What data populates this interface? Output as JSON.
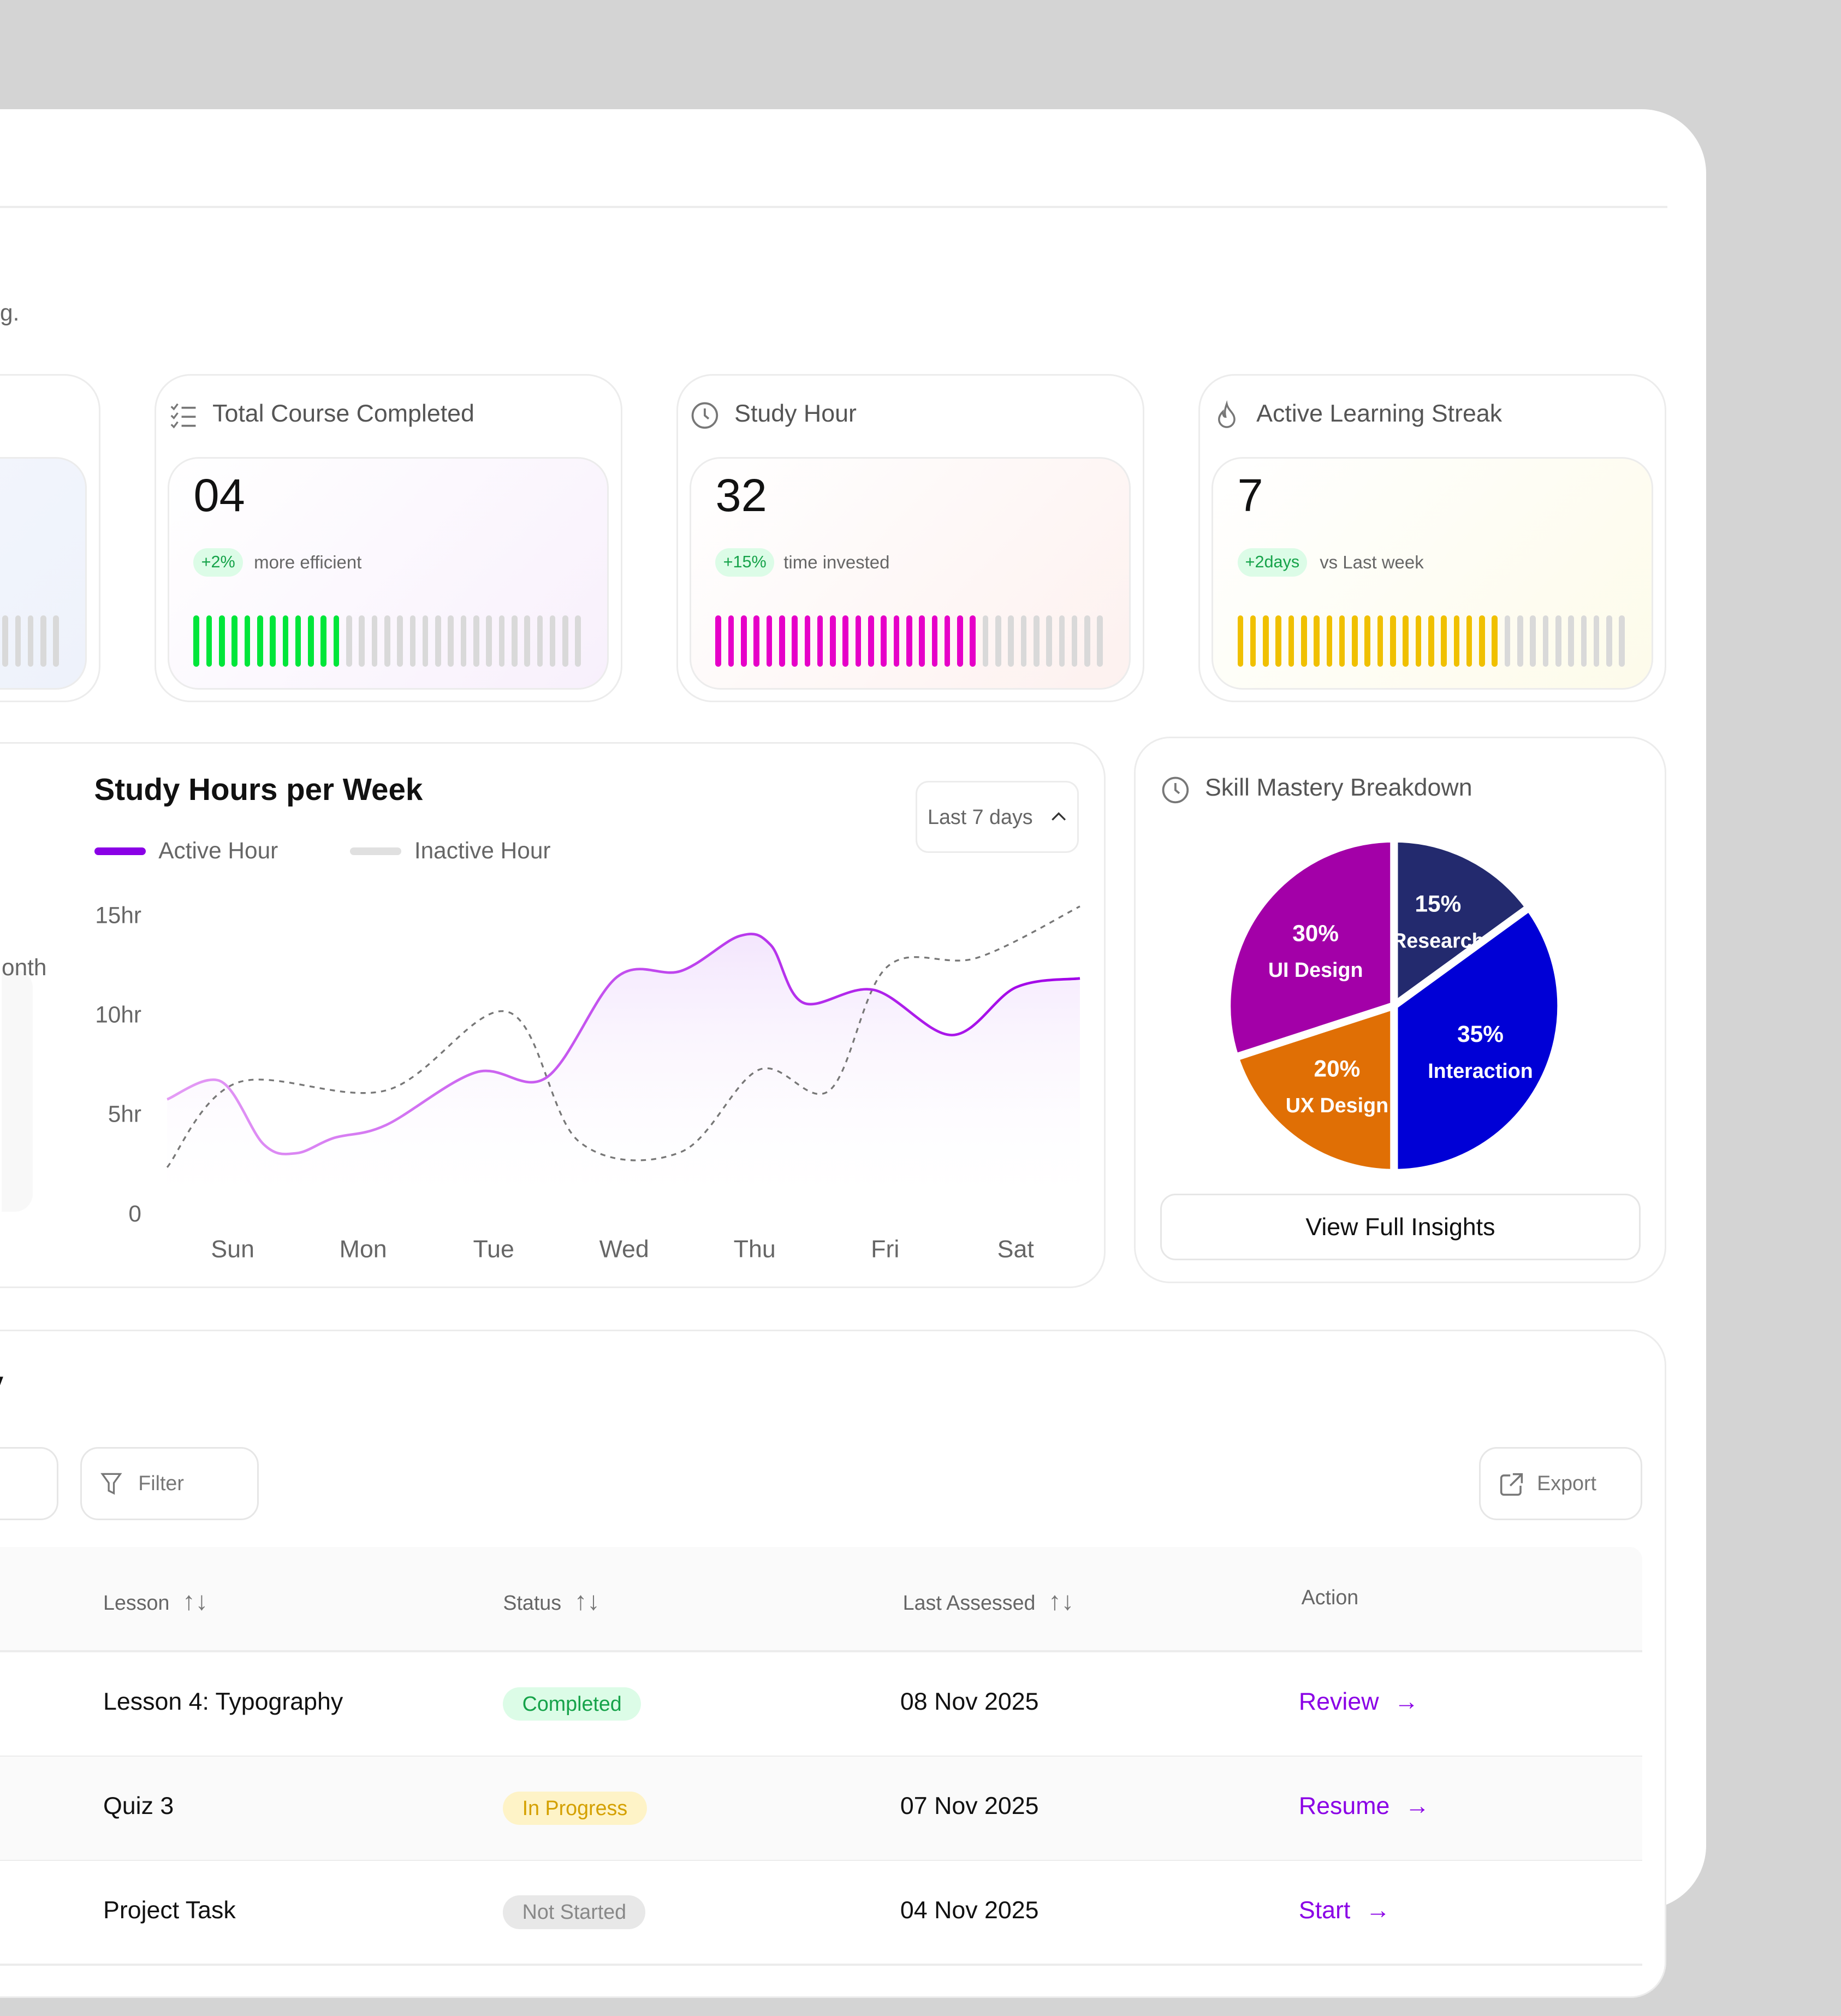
{
  "header": {
    "subtitle_fragment": "g."
  },
  "stats": [
    {
      "title": "",
      "value": "",
      "badge": "",
      "subtext": "",
      "bar_color": "#d9d9d9",
      "filled_bars": 0,
      "total_bars": 31,
      "gradient": [
        "#f6f8fd",
        "#eef2fb"
      ]
    },
    {
      "title": "Total Course Completed",
      "icon": "checklist-icon",
      "value": "04",
      "badge": "+2%",
      "subtext": "more efficient",
      "bar_color": "#00e63a",
      "filled_bars": 12,
      "total_bars": 31,
      "gradient": [
        "#ffffff",
        "#f8f0fc"
      ]
    },
    {
      "title": "Study Hour",
      "icon": "clock-icon",
      "value": "32",
      "badge": "+15%",
      "subtext": "time invested",
      "bar_color": "#e600c8",
      "filled_bars": 21,
      "total_bars": 31,
      "gradient": [
        "#ffffff",
        "#fdf1ef"
      ]
    },
    {
      "title": "Active Learning Streak",
      "icon": "flame-icon",
      "value": "7",
      "badge": "+2days",
      "subtext": "vs Last week",
      "bar_color": "#f0c000",
      "filled_bars": 21,
      "total_bars": 31,
      "gradient": [
        "#ffffff",
        "#fdfbea"
      ]
    }
  ],
  "left_fragment": {
    "text": "onth"
  },
  "study_chart": {
    "title": "Study Hours per Week",
    "range_select": "Last 7 days",
    "legend": [
      {
        "label": "Active Hour",
        "color": "#8a00e6"
      },
      {
        "label": "Inactive Hour",
        "color": "#e0e0e0"
      }
    ]
  },
  "chart_data": [
    {
      "type": "line",
      "title": "Study Hours per Week",
      "categories": [
        "Sun",
        "Mon",
        "Tue",
        "Wed",
        "Thu",
        "Fri",
        "Sat"
      ],
      "yticks": [
        "0",
        "5hr",
        "10hr",
        "15hr"
      ],
      "ytick_values": [
        0,
        5,
        10,
        15
      ],
      "ylim": [
        0,
        15
      ],
      "xlim": [
        0,
        7
      ],
      "series": [
        {
          "name": "Active Hour",
          "style": "solid",
          "color": "#b44cf0",
          "x": [
            0,
            0.41,
            0.74,
            0.99,
            1.28,
            1.68,
            2.37,
            2.91,
            3.45,
            3.94,
            4.39,
            4.63,
            4.88,
            5.42,
            6.02,
            6.51,
            7.0
          ],
          "y": [
            5.75,
            6.66,
            3.49,
            3.04,
            3.81,
            4.46,
            7.11,
            6.85,
            11.9,
            12.2,
            13.96,
            13.5,
            10.6,
            11.25,
            8.98,
            11.38,
            11.83
          ]
        },
        {
          "name": "Inactive Hour",
          "style": "dashed",
          "color": "#777777",
          "x": [
            0,
            0.54,
            1.68,
            2.61,
            3.16,
            3.94,
            4.54,
            5.08,
            5.52,
            6.21,
            7.0
          ],
          "y": [
            2.33,
            6.59,
            6.2,
            10.15,
            3.62,
            3.1,
            7.24,
            6.2,
            12.4,
            12.86,
            15.45
          ]
        }
      ]
    },
    {
      "type": "pie",
      "title": "Skill Mastery Breakdown",
      "slices": [
        {
          "label": "Research",
          "value": 15,
          "text": "15%",
          "color": "#232a6e"
        },
        {
          "label": "Interaction",
          "value": 35,
          "text": "35%",
          "color": "#0000d6"
        },
        {
          "label": "UX Design",
          "value": 20,
          "text": "20%",
          "color": "#e06f05"
        },
        {
          "label": "UI Design",
          "value": 30,
          "text": "30%",
          "color": "#a300a8"
        }
      ]
    }
  ],
  "skill_card": {
    "title": "Skill Mastery Breakdown",
    "button": "View Full Insights"
  },
  "activity": {
    "title_fragment": "y",
    "filter": "Filter",
    "export": "Export",
    "columns": [
      "Lesson",
      "Status",
      "Last Assessed",
      "Action"
    ],
    "rows": [
      {
        "lesson": "Lesson 4: Typography",
        "status": "Completed",
        "status_kind": "done",
        "date": "08 Nov 2025",
        "action": "Review"
      },
      {
        "lesson": "Quiz 3",
        "status": "In Progress",
        "status_kind": "progress",
        "date": "07 Nov 2025",
        "action": "Resume"
      },
      {
        "lesson": "Project Task",
        "status": "Not Started",
        "status_kind": "none",
        "date": "04 Nov 2025",
        "action": "Start"
      }
    ]
  }
}
